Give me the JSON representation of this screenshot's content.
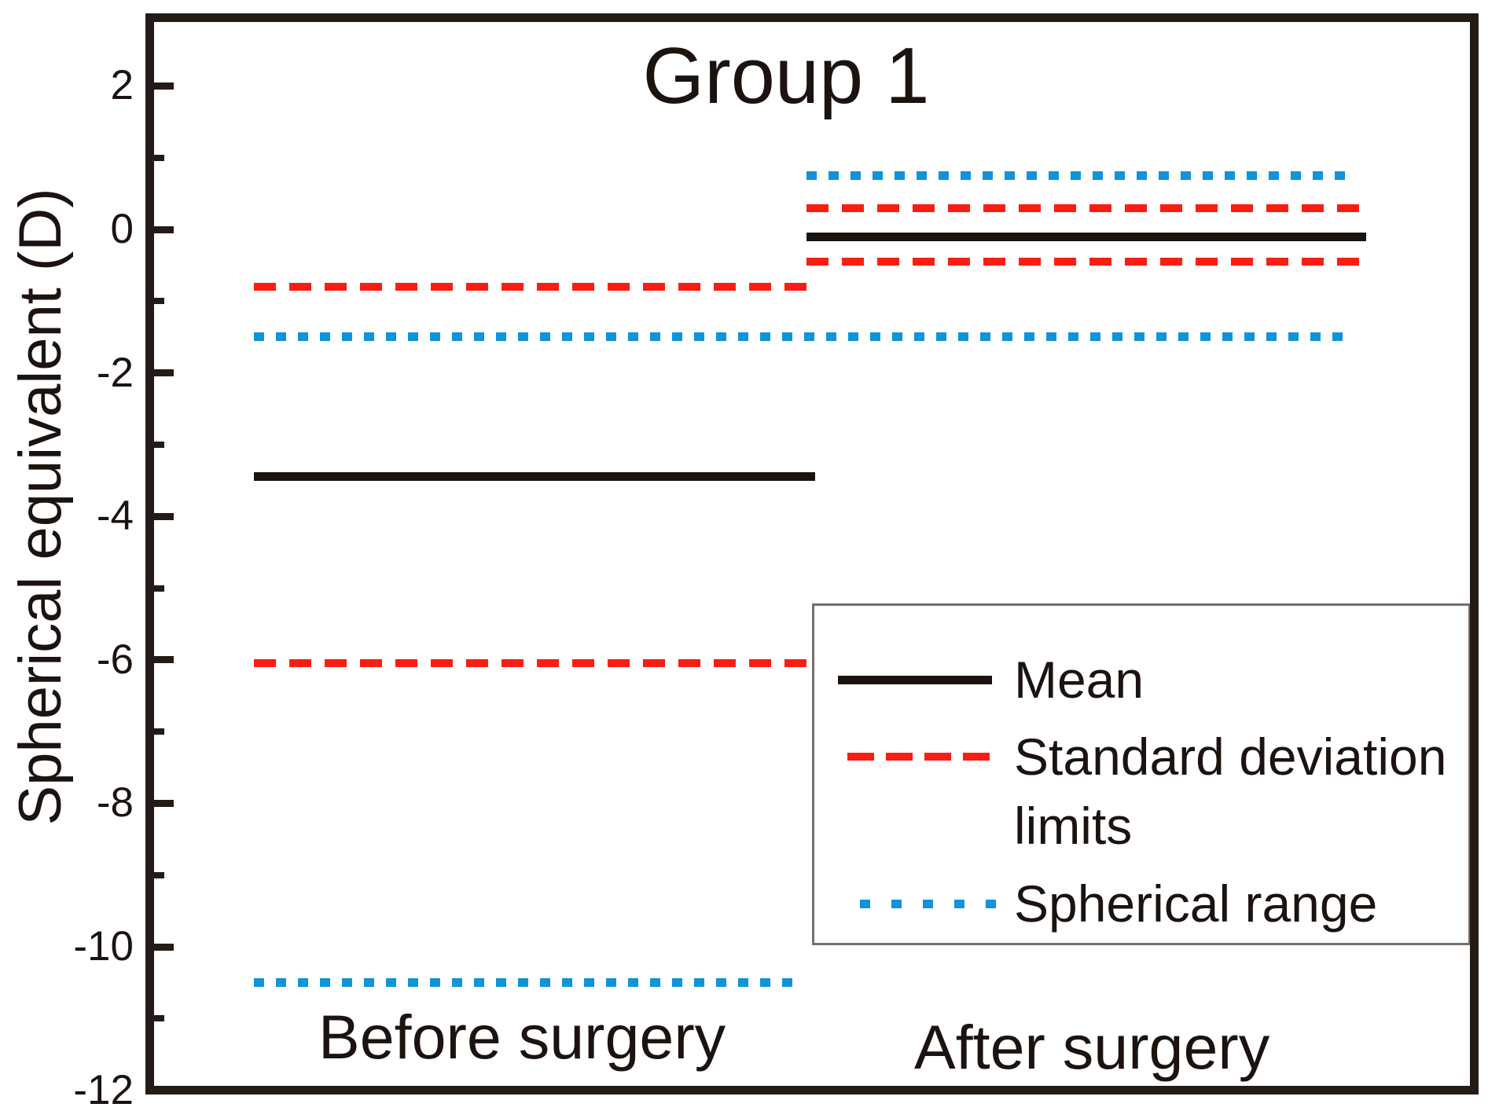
{
  "title": "Group 1",
  "y_axis": {
    "label": "Spherical equivalent (D)",
    "major_ticks": [
      2,
      0,
      -2,
      -4,
      -6,
      -8,
      -10,
      -12
    ],
    "minor_ticks": [
      1,
      -1,
      -3,
      -5,
      -7,
      -9,
      -11
    ],
    "top_value": 3,
    "bottom_value": -12
  },
  "x_labels": [
    "Before surgery",
    "After surgery"
  ],
  "legend": {
    "items": [
      {
        "label": "Mean",
        "style": "solid",
        "color": "#1b1310"
      },
      {
        "label": "Standard deviation limits",
        "style": "dashed",
        "color": "#fb1d12"
      },
      {
        "label": "Spherical range",
        "style": "dotted",
        "color": "#0f94d9"
      }
    ],
    "position": "lower right"
  },
  "colors": {
    "mean": "#1b1310",
    "sd": "#fb1d12",
    "range": "#0f94d9",
    "spine": "#241b16",
    "text": "#1b1310"
  },
  "chart_data": {
    "type": "line",
    "title": "Group 1",
    "ylabel": "Spherical equivalent (D)",
    "ylim": [
      -12,
      3
    ],
    "grid": false,
    "legend_position": "lower right",
    "categories": [
      "Before surgery",
      "After surgery"
    ],
    "series": [
      {
        "name": "Mean",
        "values": [
          -3.45,
          -0.1
        ]
      },
      {
        "name": "Standard deviation upper limit",
        "values": [
          -0.8,
          0.3
        ]
      },
      {
        "name": "Standard deviation lower limit",
        "values": [
          -6.05,
          -0.45
        ]
      },
      {
        "name": "Spherical range upper",
        "values": [
          -1.5,
          0.75
        ]
      },
      {
        "name": "Spherical range lower",
        "values": [
          -10.5,
          -1.5
        ]
      }
    ],
    "notes": "Horizontal interval chart; the -1.5 D spherical-range line is continuous across both groups."
  }
}
